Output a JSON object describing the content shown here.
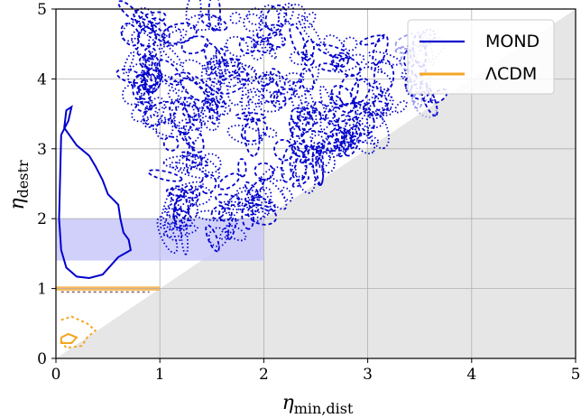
{
  "chart_data": {
    "type": "contour",
    "xlabel": "η_min,dist",
    "ylabel": "η_destr",
    "xlim": [
      0,
      5
    ],
    "ylim": [
      0,
      5
    ],
    "xticks": [
      "0",
      "1",
      "2",
      "3",
      "4",
      "5"
    ],
    "yticks": [
      "0",
      "1",
      "2",
      "3",
      "4",
      "5"
    ],
    "grid": true,
    "legend_position": "top-right",
    "colors": {
      "MOND": "#0000cc",
      "LCDM": "#f5a623",
      "MOND_band": "#c8c8fa",
      "LCDM_band": "#f7b24a",
      "excluded": "#e6e6e6",
      "grid": "#b0b0b0"
    },
    "excluded_region": {
      "description_boundary": "y = x",
      "points": [
        [
          0,
          0
        ],
        [
          5,
          5
        ],
        [
          5,
          0
        ]
      ]
    },
    "bands": [
      {
        "series": "MOND",
        "x": [
          0,
          2
        ],
        "y": [
          1.4,
          2.0
        ]
      },
      {
        "series": "LCDM",
        "x": [
          0,
          1
        ],
        "y": [
          0.97,
          1.03
        ]
      }
    ],
    "series": [
      {
        "name": "MOND",
        "solid_contour": [
          [
            0.05,
            3.2
          ],
          [
            0.12,
            3.4
          ],
          [
            0.15,
            3.6
          ],
          [
            0.1,
            3.55
          ],
          [
            0.08,
            3.3
          ],
          [
            0.2,
            3.05
          ],
          [
            0.32,
            2.9
          ],
          [
            0.38,
            2.75
          ],
          [
            0.45,
            2.55
          ],
          [
            0.5,
            2.35
          ],
          [
            0.6,
            2.2
          ],
          [
            0.62,
            2.0
          ],
          [
            0.65,
            1.8
          ],
          [
            0.7,
            1.7
          ],
          [
            0.72,
            1.55
          ],
          [
            0.6,
            1.45
          ],
          [
            0.45,
            1.2
          ],
          [
            0.32,
            1.15
          ],
          [
            0.2,
            1.17
          ],
          [
            0.1,
            1.3
          ],
          [
            0.05,
            1.55
          ],
          [
            0.03,
            2.0
          ],
          [
            0.05,
            3.2
          ]
        ],
        "dashed_clusters": [
          {
            "x": [
              0.7,
              2.5
            ],
            "y": [
              3.5,
              5.0
            ]
          },
          {
            "x": [
              1.0,
              2.9
            ],
            "y": [
              1.7,
              3.6
            ]
          },
          {
            "x": [
              2.6,
              3.2
            ],
            "y": [
              3.0,
              4.6
            ]
          },
          {
            "x": [
              3.3,
              3.7
            ],
            "y": [
              3.6,
              4.6
            ]
          },
          {
            "x": [
              1.5,
              2.4
            ],
            "y": [
              1.3,
              2.0
            ]
          }
        ]
      },
      {
        "name": "ΛCDM",
        "solid_contour": [
          [
            0.05,
            0.3
          ],
          [
            0.12,
            0.35
          ],
          [
            0.2,
            0.3
          ],
          [
            0.15,
            0.22
          ],
          [
            0.05,
            0.22
          ],
          [
            0.05,
            0.3
          ]
        ],
        "dashed_contour": [
          [
            0.05,
            0.55
          ],
          [
            0.15,
            0.6
          ],
          [
            0.3,
            0.5
          ],
          [
            0.38,
            0.4
          ],
          [
            0.3,
            0.3
          ],
          [
            0.25,
            0.18
          ],
          [
            0.1,
            0.15
          ],
          [
            0.05,
            0.25
          ]
        ]
      }
    ]
  },
  "legend": {
    "items": [
      {
        "label": "MOND",
        "color": "#0000cc"
      },
      {
        "label": "ΛCDM",
        "color": "#f5a623"
      }
    ]
  }
}
